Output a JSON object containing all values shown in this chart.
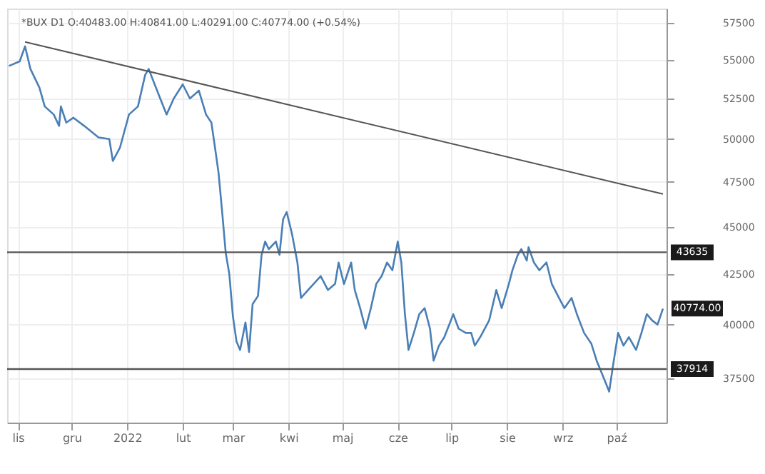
{
  "chart_data": {
    "type": "line",
    "title": "*BUX D1 O:40483.00 H:40841.00 L:40291.00 C:40774.00 (+0.54%)",
    "log": "y",
    "grid": true,
    "line_style": "solid",
    "marker": "none",
    "xlim": [
      "2021-10-26",
      "2022-10-29"
    ],
    "xticks": [
      {
        "value": "2021-11-01",
        "label": "lis"
      },
      {
        "value": "2021-12-01",
        "label": "gru"
      },
      {
        "value": "2022-01-01",
        "label": "2022"
      },
      {
        "value": "2022-02-01",
        "label": "lut"
      },
      {
        "value": "2022-03-01",
        "label": "mar"
      },
      {
        "value": "2022-04-01",
        "label": "kwi"
      },
      {
        "value": "2022-05-01",
        "label": "maj"
      },
      {
        "value": "2022-06-01",
        "label": "cze"
      },
      {
        "value": "2022-07-01",
        "label": "lip"
      },
      {
        "value": "2022-08-01",
        "label": "sie"
      },
      {
        "value": "2022-09-01",
        "label": "wrz"
      },
      {
        "value": "2022-10-01",
        "label": "paź"
      }
    ],
    "ylim": [
      35550,
      58500
    ],
    "yticks": [
      37500,
      40000,
      42500,
      45000,
      47500,
      50000,
      52500,
      55000,
      57500
    ],
    "series": [
      {
        "color": "#4a7fb5",
        "x": [
          "2021-10-27",
          "2021-11-02",
          "2021-11-05",
          "2021-11-08",
          "2021-11-13",
          "2021-11-16",
          "2021-11-21",
          "2021-11-24",
          "2021-11-25",
          "2021-11-28",
          "2021-12-02",
          "2021-12-08",
          "2021-12-16",
          "2021-12-22",
          "2021-12-24",
          "2021-12-28",
          "2022-01-02",
          "2022-01-07",
          "2022-01-11",
          "2022-01-13",
          "2022-01-17",
          "2022-01-23",
          "2022-01-27",
          "2022-02-01",
          "2022-02-05",
          "2022-02-10",
          "2022-02-14",
          "2022-02-17",
          "2022-02-19",
          "2022-02-21",
          "2022-02-23",
          "2022-02-25",
          "2022-02-27",
          "2022-03-01",
          "2022-03-03",
          "2022-03-05",
          "2022-03-08",
          "2022-03-10",
          "2022-03-12",
          "2022-03-15",
          "2022-03-17",
          "2022-03-19",
          "2022-03-21",
          "2022-03-25",
          "2022-03-27",
          "2022-03-29",
          "2022-03-31",
          "2022-04-03",
          "2022-04-06",
          "2022-04-08",
          "2022-04-12",
          "2022-04-15",
          "2022-04-19",
          "2022-04-23",
          "2022-04-27",
          "2022-04-29",
          "2022-05-02",
          "2022-05-06",
          "2022-05-08",
          "2022-05-11",
          "2022-05-14",
          "2022-05-17",
          "2022-05-20",
          "2022-05-23",
          "2022-05-26",
          "2022-05-29",
          "2022-06-01",
          "2022-06-03",
          "2022-06-05",
          "2022-06-07",
          "2022-06-10",
          "2022-06-13",
          "2022-06-16",
          "2022-06-19",
          "2022-06-21",
          "2022-06-24",
          "2022-06-27",
          "2022-07-02",
          "2022-07-05",
          "2022-07-09",
          "2022-07-12",
          "2022-07-14",
          "2022-07-17",
          "2022-07-22",
          "2022-07-26",
          "2022-07-29",
          "2022-08-02",
          "2022-08-04",
          "2022-08-07",
          "2022-08-09",
          "2022-08-12",
          "2022-08-13",
          "2022-08-16",
          "2022-08-19",
          "2022-08-23",
          "2022-08-26",
          "2022-08-30",
          "2022-09-02",
          "2022-09-06",
          "2022-09-09",
          "2022-09-13",
          "2022-09-17",
          "2022-09-20",
          "2022-09-24",
          "2022-09-27",
          "2022-09-29",
          "2022-10-02",
          "2022-10-05",
          "2022-10-08",
          "2022-10-12",
          "2022-10-15",
          "2022-10-18",
          "2022-10-21",
          "2022-10-24",
          "2022-10-27"
        ],
        "values": [
          54600,
          54900,
          55900,
          54400,
          53200,
          52000,
          51500,
          50800,
          52000,
          51000,
          51300,
          50800,
          50100,
          50000,
          48700,
          49500,
          51500,
          52000,
          54000,
          54400,
          53200,
          51500,
          52500,
          53400,
          52500,
          53000,
          51500,
          51000,
          49500,
          48000,
          45800,
          43600,
          42500,
          40400,
          39200,
          38800,
          40100,
          38700,
          41000,
          41400,
          43500,
          44200,
          43800,
          44200,
          43500,
          45400,
          45800,
          44600,
          43100,
          41300,
          41700,
          42000,
          42400,
          41700,
          42000,
          43100,
          42000,
          43100,
          41700,
          40800,
          39800,
          40800,
          42000,
          42400,
          43100,
          42700,
          44200,
          43100,
          40500,
          38800,
          39600,
          40500,
          40800,
          39800,
          38300,
          39000,
          39400,
          40500,
          39800,
          39600,
          39600,
          39000,
          39400,
          40200,
          41700,
          40800,
          42000,
          42700,
          43500,
          43800,
          43200,
          43900,
          43100,
          42700,
          43100,
          42000,
          41300,
          40800,
          41300,
          40500,
          39600,
          39100,
          38300,
          37500,
          36900,
          38000,
          39600,
          39000,
          39400,
          38800,
          39600,
          40500,
          40200,
          40000,
          40774
        ]
      },
      {
        "type": "line",
        "color": "#555555",
        "x": [
          "2021-11-05",
          "2022-10-27"
        ],
        "values": [
          56200,
          46800
        ]
      }
    ],
    "ref_lines": [
      {
        "axis": "y",
        "value": 43635,
        "label": "43635",
        "color": "#555555"
      },
      {
        "axis": "y",
        "value": 37914,
        "label": "37914",
        "color": "#555555"
      }
    ],
    "annotations": [
      {
        "text": "40774.00",
        "x": "2022-10-27",
        "y": 40774
      }
    ]
  }
}
